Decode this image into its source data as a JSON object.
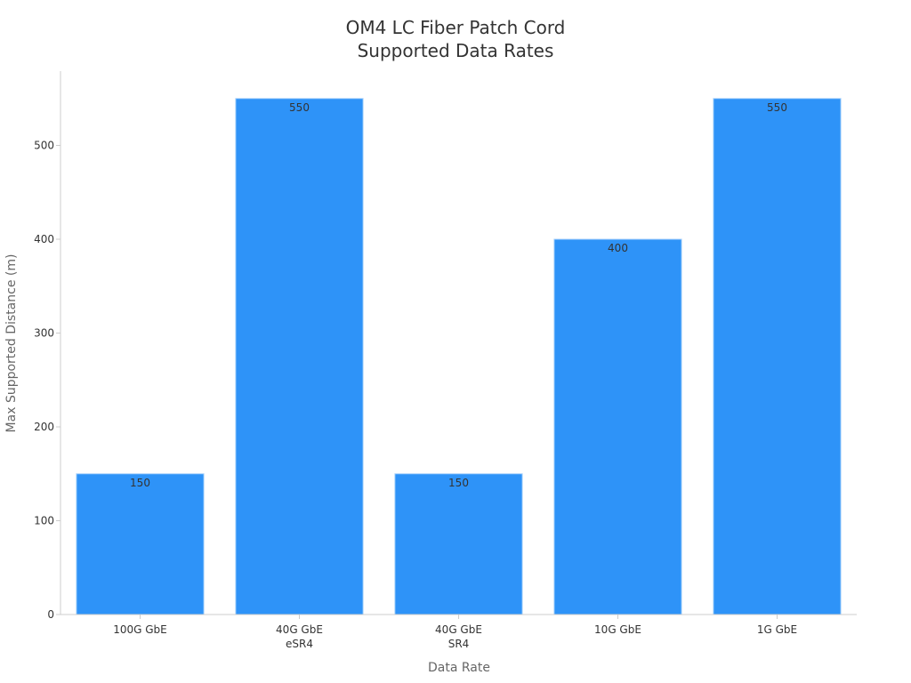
{
  "chart_data": {
    "type": "bar",
    "title_lines": [
      "OM4 LC Fiber Patch Cord",
      "Supported Data Rates"
    ],
    "categories": [
      [
        "100G GbE"
      ],
      [
        "40G GbE",
        "eSR4"
      ],
      [
        "40G GbE",
        "SR4"
      ],
      [
        "10G GbE"
      ],
      [
        "1G GbE"
      ]
    ],
    "values": [
      150,
      550,
      150,
      400,
      550
    ],
    "xlabel": "Data Rate",
    "ylabel": "Max Supported Distance (m)",
    "ylim": [
      0,
      580
    ],
    "yticks": [
      0,
      100,
      200,
      300,
      400,
      500
    ],
    "grid": false,
    "bar_color": "#2e93f8",
    "bar_edge_color": "#a8d1fb",
    "axis_color": "#cccccc",
    "data_labels": [
      "150",
      "550",
      "150",
      "400",
      "550"
    ]
  }
}
